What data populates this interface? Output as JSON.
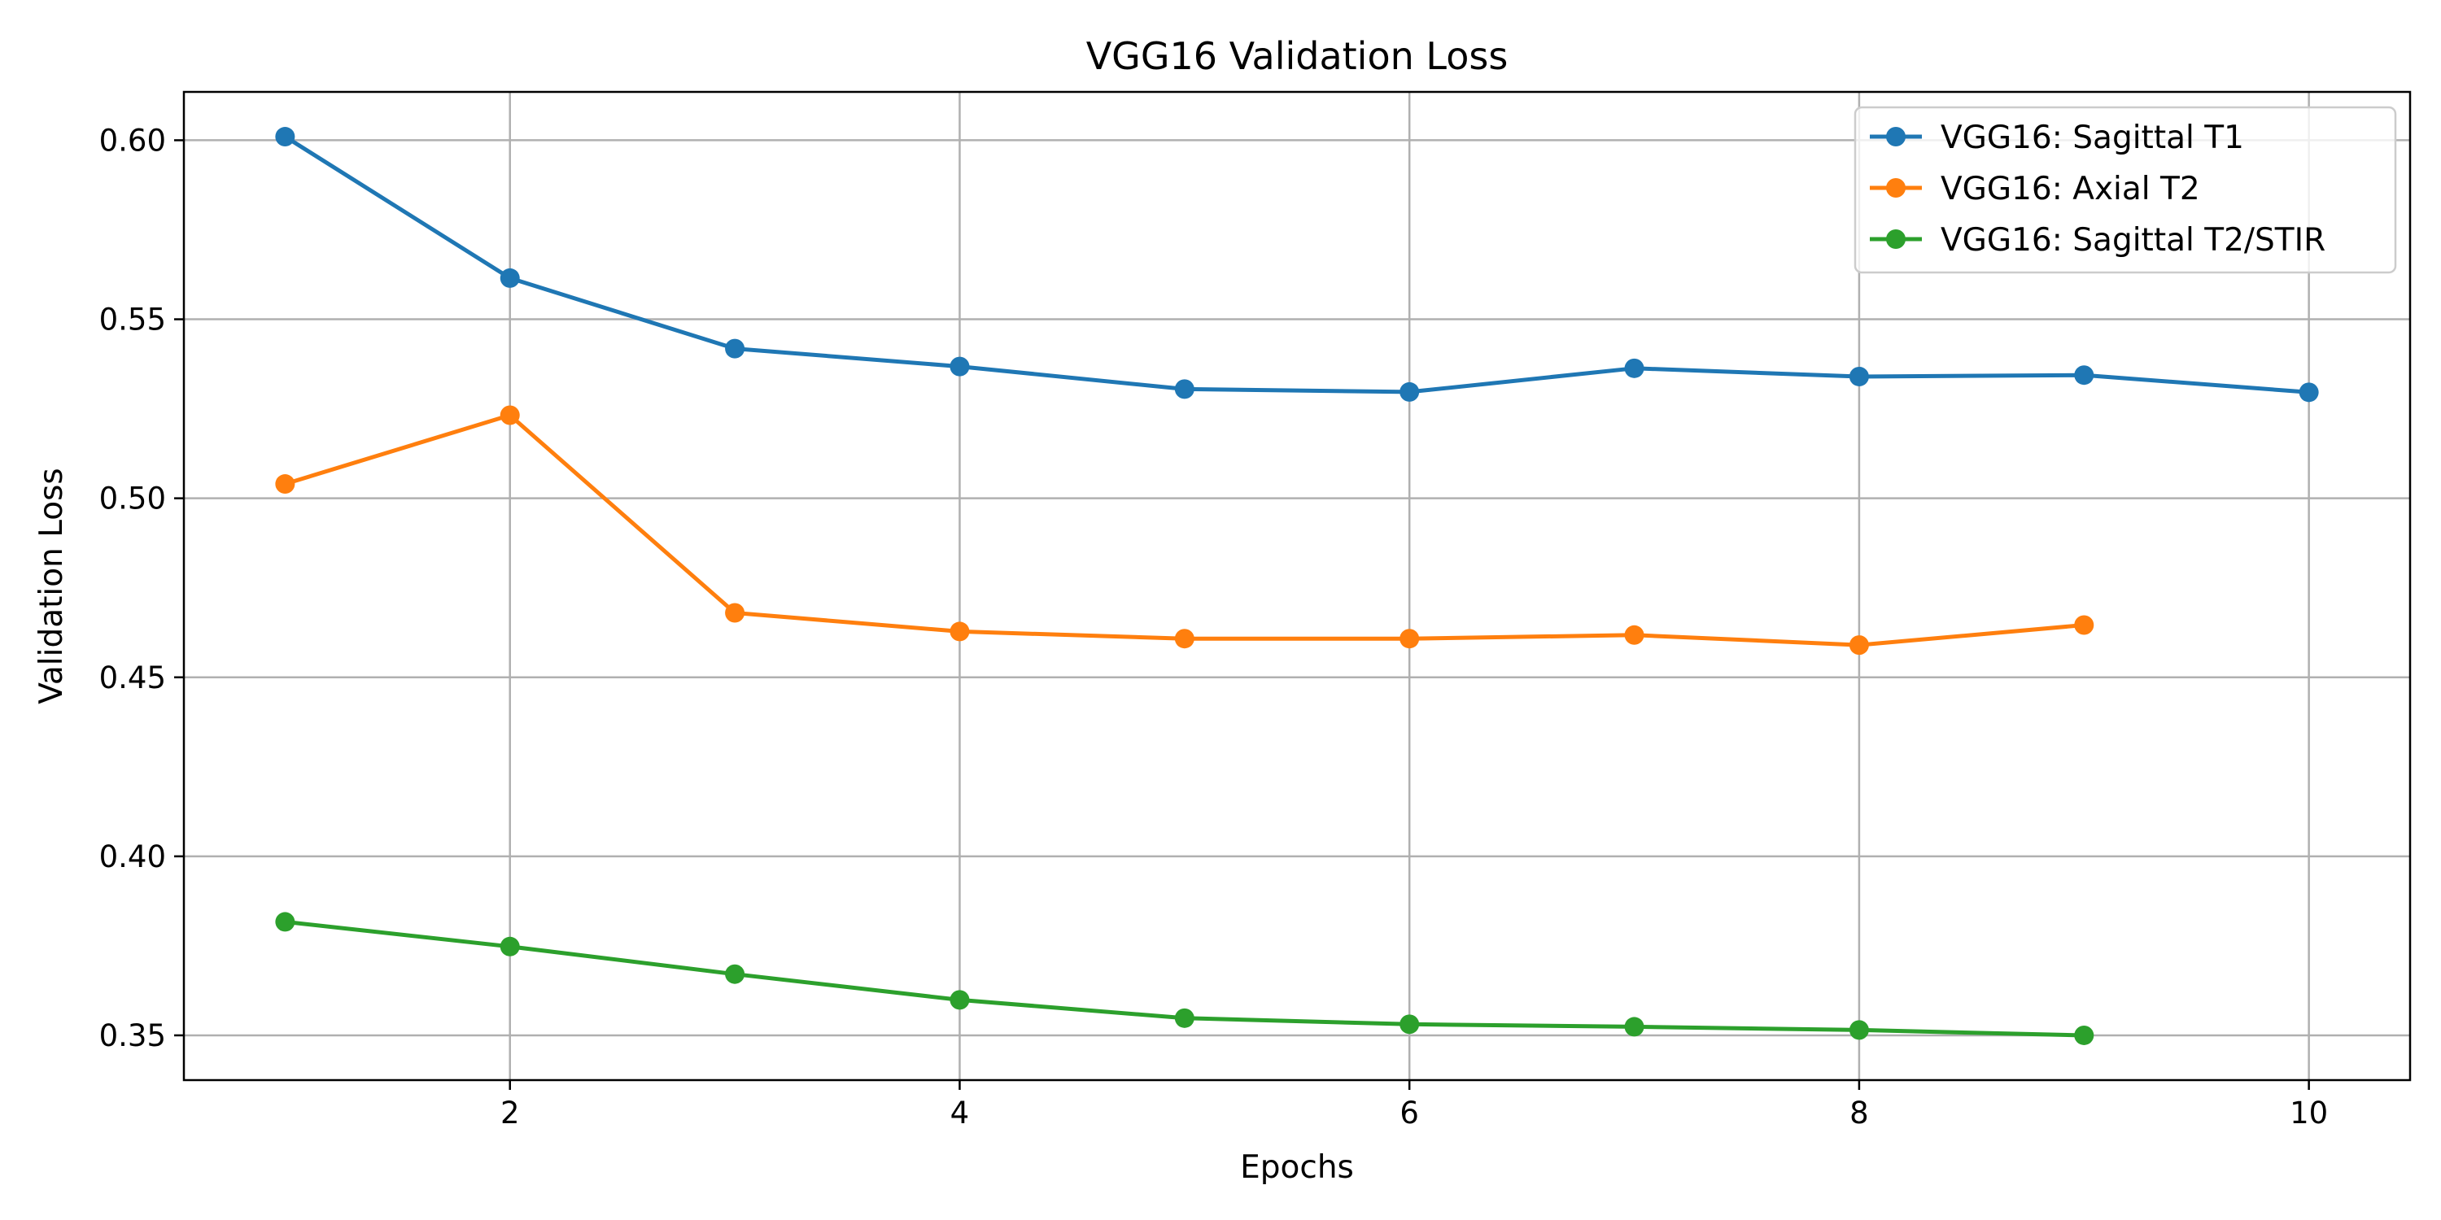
{
  "chart_data": {
    "type": "line",
    "title": "VGG16 Validation Loss",
    "xlabel": "Epochs",
    "ylabel": "Validation Loss",
    "xlim": [
      0.55,
      10.45
    ],
    "ylim": [
      0.3375,
      0.6135
    ],
    "xticks": [
      2,
      4,
      6,
      8,
      10
    ],
    "yticks": [
      0.35,
      0.4,
      0.45,
      0.5,
      0.55,
      0.6
    ],
    "xtick_labels": [
      "2",
      "4",
      "6",
      "8",
      "10"
    ],
    "ytick_labels": [
      "0.35",
      "0.40",
      "0.45",
      "0.50",
      "0.55",
      "0.60"
    ],
    "grid": true,
    "legend_position": "top-right",
    "series": [
      {
        "name": "VGG16: Sagittal T1",
        "color": "#1f77b4",
        "x": [
          1,
          2,
          3,
          4,
          5,
          6,
          7,
          8,
          9,
          10
        ],
        "values": [
          0.601,
          0.5615,
          0.5418,
          0.5368,
          0.5305,
          0.5297,
          0.5363,
          0.534,
          0.5344,
          0.5296
        ]
      },
      {
        "name": "VGG16: Axial T2",
        "color": "#ff7f0e",
        "x": [
          1,
          2,
          3,
          4,
          5,
          6,
          7,
          8,
          9
        ],
        "values": [
          0.504,
          0.5232,
          0.468,
          0.4628,
          0.4608,
          0.4608,
          0.4618,
          0.459,
          0.4646
        ]
      },
      {
        "name": "VGG16: Sagittal T2/STIR",
        "color": "#2ca02c",
        "x": [
          1,
          2,
          3,
          4,
          5,
          6,
          7,
          8,
          9
        ],
        "values": [
          0.3817,
          0.3748,
          0.3671,
          0.3599,
          0.3548,
          0.3531,
          0.3524,
          0.3515,
          0.35
        ]
      }
    ]
  }
}
